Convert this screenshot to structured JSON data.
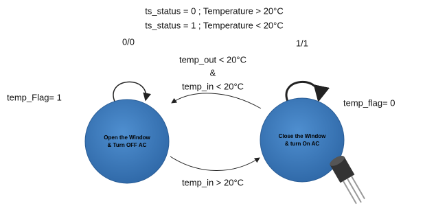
{
  "header": {
    "lines": [
      "ts_status = 0 ; Temperature > 20°C",
      "ts_status = 1 ; Temperature < 20°C"
    ]
  },
  "states": [
    {
      "label_lines": [
        "Open the Window",
        "& Turn OFF AC"
      ],
      "self_loop": "0/0",
      "flag": "temp_Flag= 1"
    },
    {
      "label_lines": [
        "Close the Window",
        "& turn On AC"
      ],
      "self_loop": "1/1",
      "flag": "temp_flag= 0"
    }
  ],
  "transitions": [
    {
      "label_lines": [
        "temp_out < 20°C",
        "&",
        "temp_in < 20°C"
      ]
    },
    {
      "label_lines": [
        "temp_in > 20°C"
      ]
    }
  ]
}
